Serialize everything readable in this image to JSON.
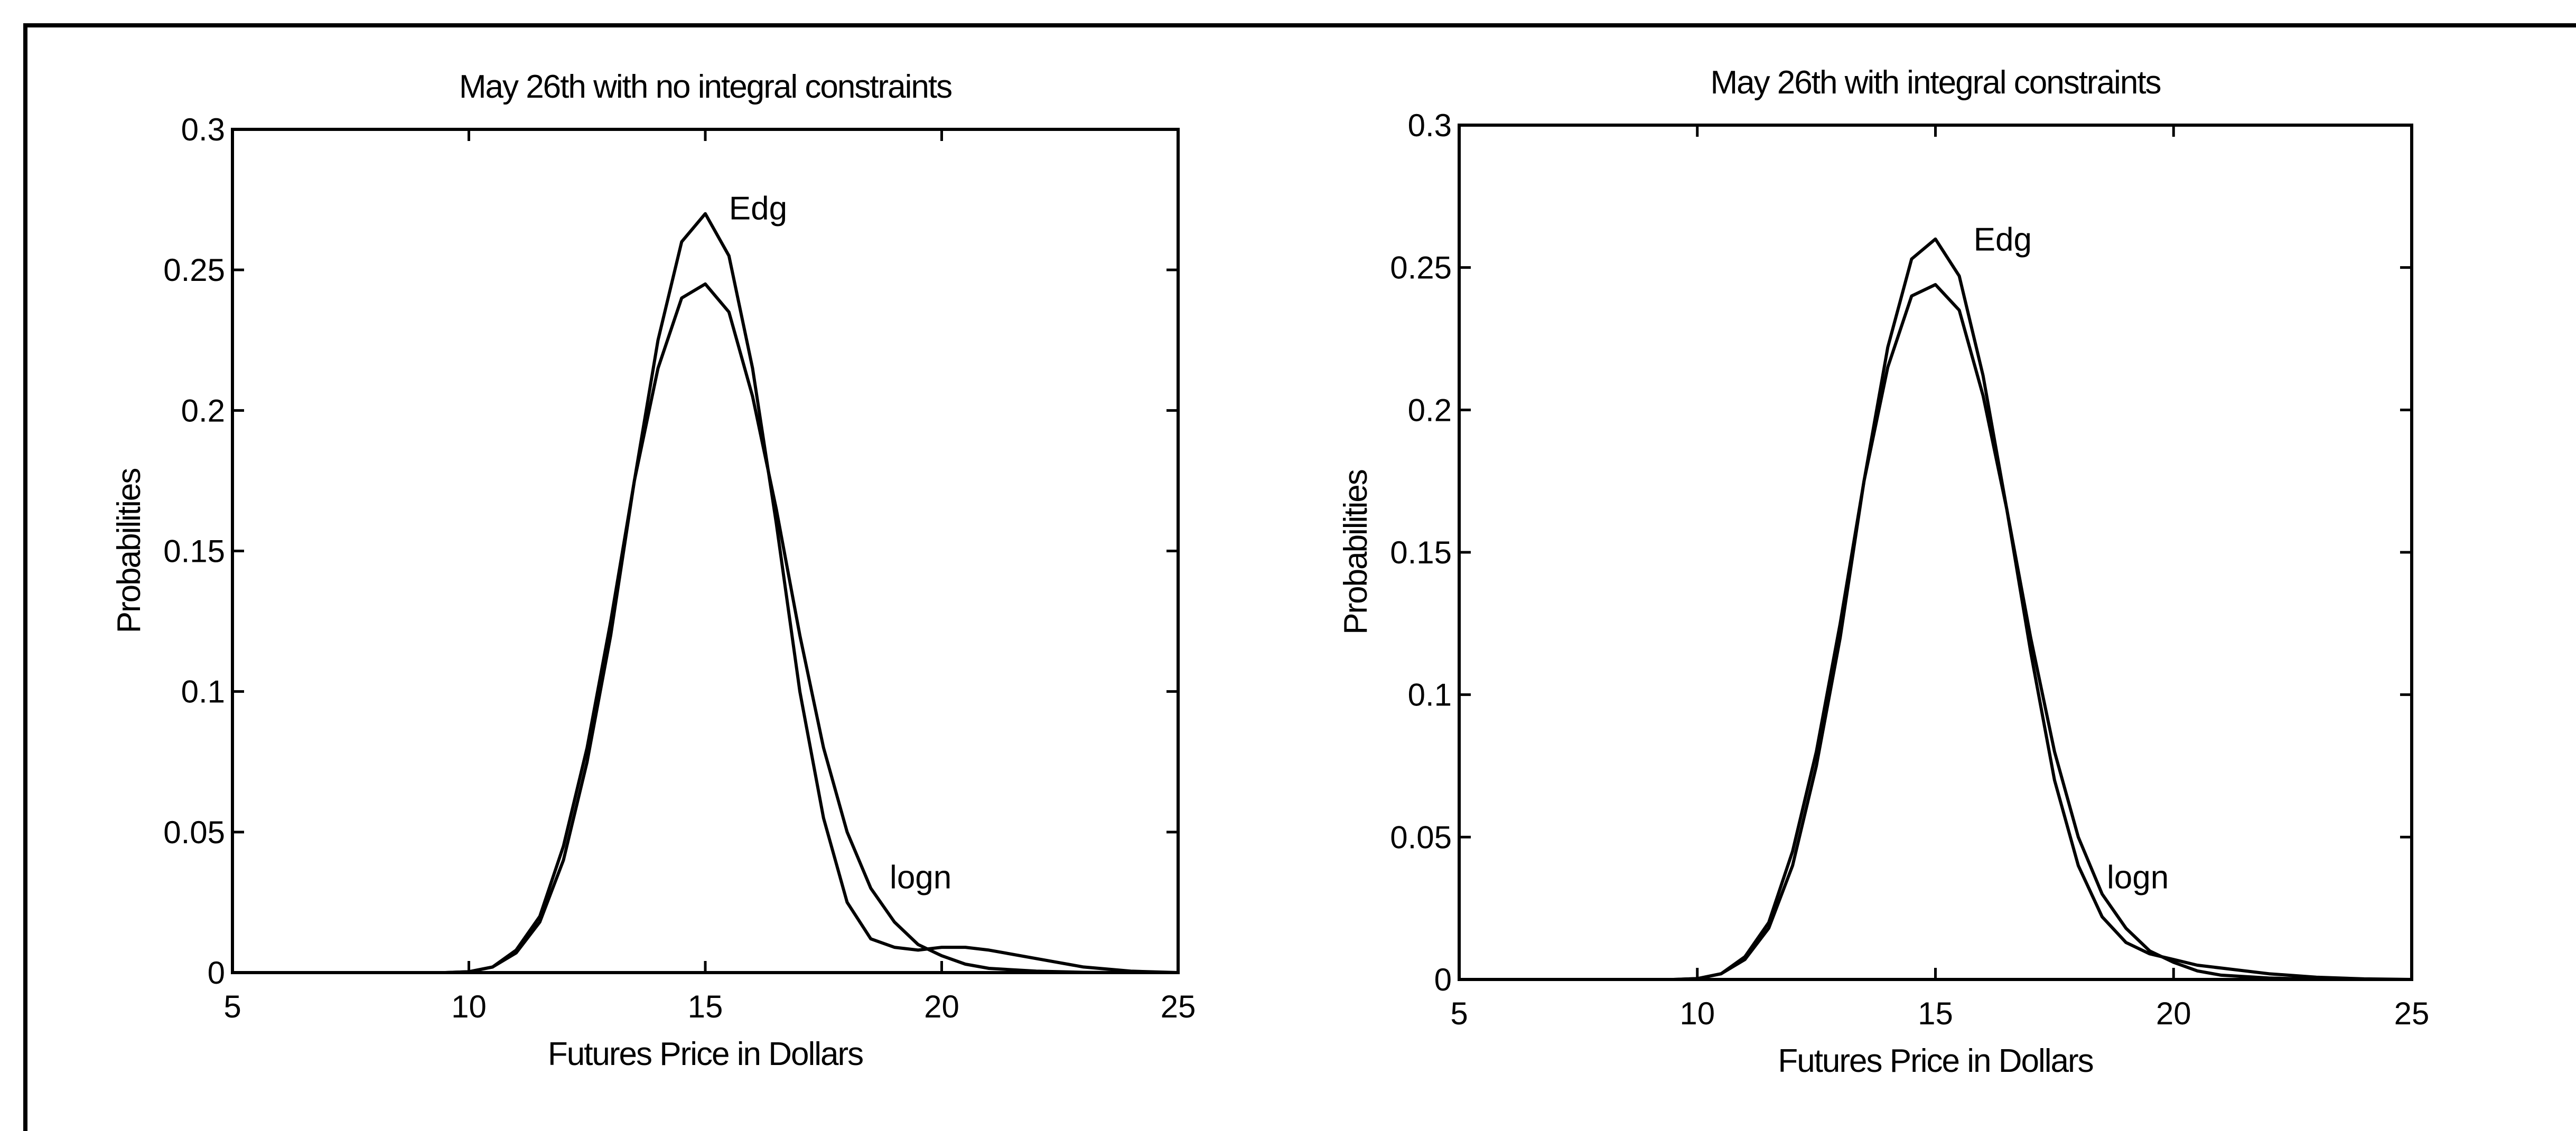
{
  "chart_data": [
    {
      "type": "line",
      "title": "May 26th with no integral constraints",
      "xlabel": "Futures Price in Dollars",
      "ylabel": "Probabilities",
      "xlim": [
        5,
        25
      ],
      "ylim": [
        0,
        0.3
      ],
      "xticks": [
        "5",
        "10",
        "15",
        "20",
        "25"
      ],
      "yticks": [
        "0",
        "0.05",
        "0.1",
        "0.15",
        "0.2",
        "0.25",
        "0.3"
      ],
      "grid": false,
      "series": [
        {
          "name": "Edg",
          "x": [
            5,
            9.5,
            10,
            10.5,
            11,
            11.5,
            12,
            12.5,
            13,
            13.5,
            14,
            14.5,
            15,
            15.5,
            16,
            16.5,
            17,
            17.5,
            18,
            18.5,
            19,
            19.5,
            20,
            20.5,
            21,
            22,
            23,
            24,
            25
          ],
          "y": [
            0,
            0,
            0.0003,
            0.002,
            0.007,
            0.018,
            0.04,
            0.075,
            0.12,
            0.175,
            0.225,
            0.26,
            0.27,
            0.255,
            0.215,
            0.16,
            0.1,
            0.055,
            0.025,
            0.012,
            0.009,
            0.008,
            0.009,
            0.009,
            0.008,
            0.005,
            0.002,
            0.0005,
            0
          ]
        },
        {
          "name": "logn",
          "x": [
            5,
            9.5,
            10,
            10.5,
            11,
            11.5,
            12,
            12.5,
            13,
            13.5,
            14,
            14.5,
            15,
            15.5,
            16,
            16.5,
            17,
            17.5,
            18,
            18.5,
            19,
            19.5,
            20,
            20.5,
            21,
            22,
            23,
            24,
            25
          ],
          "y": [
            0,
            0,
            0.0003,
            0.002,
            0.008,
            0.02,
            0.045,
            0.08,
            0.125,
            0.175,
            0.215,
            0.24,
            0.245,
            0.235,
            0.205,
            0.165,
            0.12,
            0.08,
            0.05,
            0.03,
            0.018,
            0.01,
            0.006,
            0.003,
            0.0015,
            0.0005,
            0.0001,
            0,
            0
          ]
        }
      ],
      "annotations": [
        {
          "text": "Edg",
          "x": 15.5,
          "y": 0.268
        },
        {
          "text": "logn",
          "x": 18.9,
          "y": 0.03
        }
      ]
    },
    {
      "type": "line",
      "title": "May 26th with integral constraints",
      "xlabel": "Futures Price in Dollars",
      "ylabel": "Probabilities",
      "xlim": [
        5,
        25
      ],
      "ylim": [
        0,
        0.3
      ],
      "xticks": [
        "5",
        "10",
        "15",
        "20",
        "25"
      ],
      "yticks": [
        "0",
        "0.05",
        "0.1",
        "0.15",
        "0.2",
        "0.25",
        "0.3"
      ],
      "grid": false,
      "series": [
        {
          "name": "Edg",
          "x": [
            5,
            9.5,
            10,
            10.5,
            11,
            11.5,
            12,
            12.5,
            13,
            13.5,
            14,
            14.5,
            15,
            15.5,
            16,
            16.5,
            17,
            17.5,
            18,
            18.5,
            19,
            19.5,
            20,
            20.5,
            21,
            22,
            23,
            24,
            25
          ],
          "y": [
            0,
            0,
            0.0003,
            0.002,
            0.007,
            0.018,
            0.04,
            0.075,
            0.12,
            0.175,
            0.222,
            0.253,
            0.26,
            0.247,
            0.212,
            0.165,
            0.115,
            0.07,
            0.04,
            0.022,
            0.013,
            0.009,
            0.007,
            0.005,
            0.004,
            0.002,
            0.0008,
            0.0002,
            0
          ]
        },
        {
          "name": "logn",
          "x": [
            5,
            9.5,
            10,
            10.5,
            11,
            11.5,
            12,
            12.5,
            13,
            13.5,
            14,
            14.5,
            15,
            15.5,
            16,
            16.5,
            17,
            17.5,
            18,
            18.5,
            19,
            19.5,
            20,
            20.5,
            21,
            22,
            23,
            24,
            25
          ],
          "y": [
            0,
            0,
            0.0003,
            0.002,
            0.008,
            0.02,
            0.045,
            0.08,
            0.125,
            0.175,
            0.215,
            0.24,
            0.244,
            0.235,
            0.205,
            0.165,
            0.12,
            0.08,
            0.05,
            0.03,
            0.018,
            0.01,
            0.006,
            0.003,
            0.0015,
            0.0005,
            0.0001,
            0,
            0
          ]
        }
      ],
      "annotations": [
        {
          "text": "Edg",
          "x": 15.8,
          "y": 0.256
        },
        {
          "text": "logn",
          "x": 18.6,
          "y": 0.032
        }
      ]
    }
  ]
}
